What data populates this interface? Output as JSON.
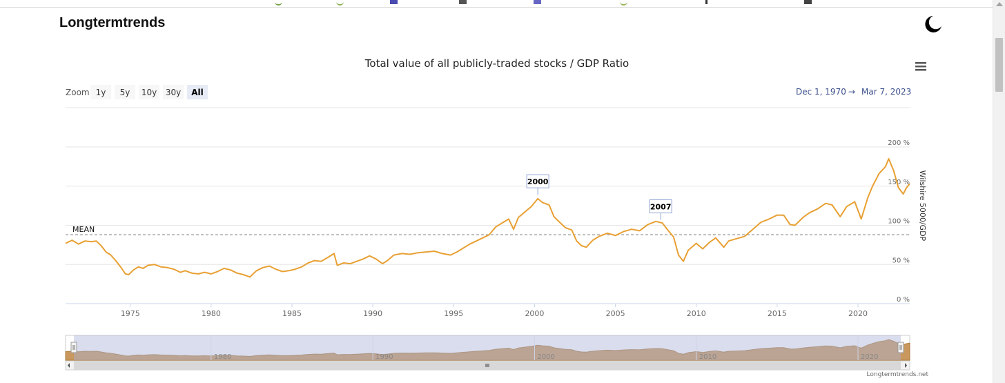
{
  "site": {
    "brand": "Longtermtrends",
    "theme_icon": "moon-icon",
    "credit": "Longtermtrends.net"
  },
  "chart": {
    "title": "Total value of all publicly-traded stocks / GDP Ratio",
    "zoom_label": "Zoom",
    "zoom_buttons": [
      "1y",
      "5y",
      "10y",
      "30y",
      "All"
    ],
    "zoom_selected": "All",
    "range_from": "Dec 1, 1970",
    "range_arrow": "→",
    "range_to": "Mar 7, 2023",
    "menu_icon": "hamburger-menu-icon",
    "y_axis_title": "Wilshire 5000/GDP",
    "mean_label": "MEAN",
    "colors": {
      "series": "#e8a033",
      "navigator_fill": "#c9985e",
      "navigator_mask": "#d5daed",
      "grid": "#e6e6e6",
      "range_text": "#3b4f8c"
    }
  },
  "chart_data": {
    "type": "line",
    "x_range": [
      1971.0,
      2023.2
    ],
    "y_range": [
      0,
      200
    ],
    "x_ticks": [
      {
        "value": 1975,
        "label": "1975"
      },
      {
        "value": 1980,
        "label": "1980"
      },
      {
        "value": 1985,
        "label": "1985"
      },
      {
        "value": 1990,
        "label": "1990"
      },
      {
        "value": 1995,
        "label": "1995"
      },
      {
        "value": 2000,
        "label": "2000"
      },
      {
        "value": 2005,
        "label": "2005"
      },
      {
        "value": 2010,
        "label": "2010"
      },
      {
        "value": 2015,
        "label": "2015"
      },
      {
        "value": 2020,
        "label": "2020"
      }
    ],
    "y_ticks": [
      {
        "value": 0,
        "label": "0 %"
      },
      {
        "value": 50,
        "label": "50 %"
      },
      {
        "value": 100,
        "label": "100 %"
      },
      {
        "value": 150,
        "label": "150 %"
      },
      {
        "value": 200,
        "label": "200 %"
      }
    ],
    "navigator_ticks": [
      {
        "value": 1980,
        "label": "1980"
      },
      {
        "value": 1990,
        "label": "1990"
      },
      {
        "value": 2000,
        "label": "2000"
      },
      {
        "value": 2010,
        "label": "2010"
      },
      {
        "value": 2020,
        "label": "2020"
      }
    ],
    "mean": 88,
    "annotations": [
      {
        "label": "2000",
        "x": 2000.2,
        "y": 139
      },
      {
        "label": "2007",
        "x": 2007.8,
        "y": 107
      }
    ],
    "series": [
      {
        "points": [
          [
            1971.0,
            77
          ],
          [
            1971.4,
            81
          ],
          [
            1971.8,
            76
          ],
          [
            1972.2,
            80
          ],
          [
            1972.6,
            79
          ],
          [
            1972.9,
            80
          ],
          [
            1973.2,
            74
          ],
          [
            1973.5,
            66
          ],
          [
            1973.8,
            62
          ],
          [
            1974.1,
            55
          ],
          [
            1974.4,
            47
          ],
          [
            1974.7,
            38
          ],
          [
            1974.9,
            37
          ],
          [
            1975.2,
            43
          ],
          [
            1975.5,
            47
          ],
          [
            1975.8,
            45
          ],
          [
            1976.1,
            49
          ],
          [
            1976.5,
            50
          ],
          [
            1976.9,
            47
          ],
          [
            1977.3,
            46
          ],
          [
            1977.7,
            44
          ],
          [
            1978.1,
            40
          ],
          [
            1978.4,
            42
          ],
          [
            1978.8,
            39
          ],
          [
            1979.2,
            38
          ],
          [
            1979.6,
            40
          ],
          [
            1980.0,
            38
          ],
          [
            1980.4,
            41
          ],
          [
            1980.8,
            45
          ],
          [
            1981.2,
            43
          ],
          [
            1981.6,
            39
          ],
          [
            1982.0,
            37
          ],
          [
            1982.4,
            34
          ],
          [
            1982.8,
            42
          ],
          [
            1983.2,
            46
          ],
          [
            1983.6,
            48
          ],
          [
            1984.0,
            44
          ],
          [
            1984.4,
            41
          ],
          [
            1984.8,
            42
          ],
          [
            1985.2,
            44
          ],
          [
            1985.6,
            47
          ],
          [
            1986.0,
            52
          ],
          [
            1986.4,
            55
          ],
          [
            1986.8,
            54
          ],
          [
            1987.3,
            60
          ],
          [
            1987.6,
            64
          ],
          [
            1987.8,
            49
          ],
          [
            1988.2,
            52
          ],
          [
            1988.6,
            51
          ],
          [
            1989.0,
            54
          ],
          [
            1989.4,
            57
          ],
          [
            1989.8,
            61
          ],
          [
            1990.2,
            57
          ],
          [
            1990.6,
            51
          ],
          [
            1990.9,
            55
          ],
          [
            1991.3,
            62
          ],
          [
            1991.8,
            64
          ],
          [
            1992.3,
            63
          ],
          [
            1992.8,
            65
          ],
          [
            1993.3,
            66
          ],
          [
            1993.8,
            67
          ],
          [
            1994.3,
            64
          ],
          [
            1994.8,
            62
          ],
          [
            1995.2,
            66
          ],
          [
            1995.6,
            71
          ],
          [
            1996.0,
            76
          ],
          [
            1996.4,
            80
          ],
          [
            1996.8,
            84
          ],
          [
            1997.2,
            88
          ],
          [
            1997.6,
            98
          ],
          [
            1998.0,
            103
          ],
          [
            1998.4,
            108
          ],
          [
            1998.7,
            95
          ],
          [
            1999.0,
            110
          ],
          [
            1999.4,
            117
          ],
          [
            1999.8,
            124
          ],
          [
            2000.2,
            134
          ],
          [
            2000.5,
            129
          ],
          [
            2000.9,
            126
          ],
          [
            2001.2,
            111
          ],
          [
            2001.6,
            103
          ],
          [
            2001.9,
            97
          ],
          [
            2002.3,
            94
          ],
          [
            2002.6,
            80
          ],
          [
            2002.9,
            74
          ],
          [
            2003.2,
            72
          ],
          [
            2003.6,
            81
          ],
          [
            2004.0,
            86
          ],
          [
            2004.5,
            90
          ],
          [
            2005.0,
            87
          ],
          [
            2005.5,
            92
          ],
          [
            2006.0,
            95
          ],
          [
            2006.5,
            93
          ],
          [
            2007.0,
            101
          ],
          [
            2007.5,
            105
          ],
          [
            2007.9,
            103
          ],
          [
            2008.2,
            95
          ],
          [
            2008.6,
            85
          ],
          [
            2008.9,
            62
          ],
          [
            2009.2,
            54
          ],
          [
            2009.5,
            68
          ],
          [
            2010.0,
            77
          ],
          [
            2010.4,
            70
          ],
          [
            2010.8,
            78
          ],
          [
            2011.2,
            84
          ],
          [
            2011.7,
            72
          ],
          [
            2012.0,
            80
          ],
          [
            2012.5,
            83
          ],
          [
            2013.0,
            86
          ],
          [
            2013.5,
            95
          ],
          [
            2014.0,
            104
          ],
          [
            2014.5,
            108
          ],
          [
            2015.0,
            113
          ],
          [
            2015.4,
            113
          ],
          [
            2015.8,
            101
          ],
          [
            2016.1,
            100
          ],
          [
            2016.6,
            110
          ],
          [
            2017.0,
            116
          ],
          [
            2017.5,
            121
          ],
          [
            2018.0,
            128
          ],
          [
            2018.4,
            126
          ],
          [
            2018.9,
            111
          ],
          [
            2019.3,
            124
          ],
          [
            2019.8,
            130
          ],
          [
            2020.2,
            108
          ],
          [
            2020.6,
            135
          ],
          [
            2020.9,
            150
          ],
          [
            2021.3,
            166
          ],
          [
            2021.7,
            175
          ],
          [
            2021.9,
            185
          ],
          [
            2022.2,
            170
          ],
          [
            2022.5,
            148
          ],
          [
            2022.8,
            140
          ],
          [
            2023.0,
            148
          ],
          [
            2023.2,
            153
          ]
        ]
      }
    ]
  }
}
